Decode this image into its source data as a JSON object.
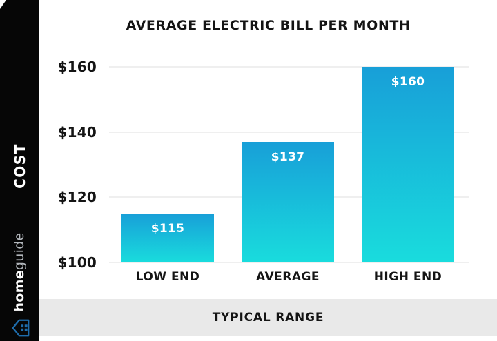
{
  "page": {
    "bg": "#ffffff"
  },
  "sidebar": {
    "cost_label": "COST",
    "brand_bold": "home",
    "brand_light": "guide",
    "bg": "#060606",
    "house_icon_color": "#1e6cab"
  },
  "chart_data": {
    "type": "bar",
    "title": "AVERAGE ELECTRIC BILL PER MONTH",
    "categories": [
      "LOW END",
      "AVERAGE",
      "HIGH END"
    ],
    "values": [
      115,
      137,
      160
    ],
    "value_labels": [
      "$115",
      "$137",
      "$160"
    ],
    "ylabel": "COST",
    "xlabel": "TYPICAL RANGE",
    "ylim": [
      100,
      160
    ],
    "yticks": [
      100,
      120,
      140,
      160
    ],
    "ytick_labels": [
      "$100",
      "$120",
      "$140",
      "$160"
    ],
    "grid": true,
    "legend": false,
    "colors": {
      "bar_top": "#189fd8",
      "bar_bottom": "#19dcdd",
      "gridline": "#efefef",
      "text": "#141414",
      "value_label": "#ffffff"
    }
  },
  "footer": {
    "label": "TYPICAL RANGE",
    "bg": "#e9e9e9"
  }
}
